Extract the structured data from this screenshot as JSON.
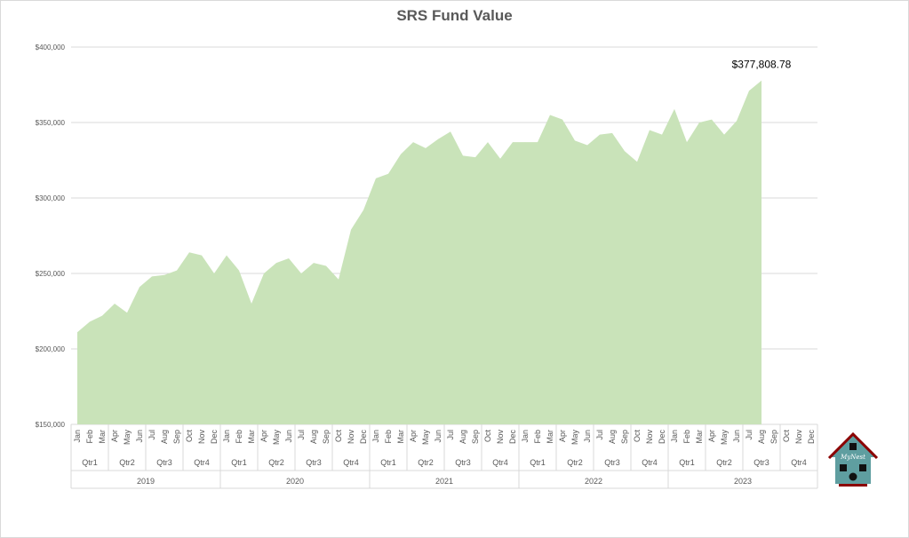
{
  "chart_data": {
    "type": "area",
    "title": "SRS Fund Value",
    "xlabel": "",
    "ylabel": "",
    "ylim": [
      150000,
      400000
    ],
    "yticks": [
      150000,
      200000,
      250000,
      300000,
      350000,
      400000
    ],
    "ytick_labels": [
      "$150,000",
      "$200,000",
      "$250,000",
      "$300,000",
      "$350,000",
      "$400,000"
    ],
    "grid": true,
    "color": "#c9e3b9",
    "months": [
      "Jan",
      "Feb",
      "Mar",
      "Apr",
      "May",
      "Jun",
      "Jul",
      "Aug",
      "Sep",
      "Oct",
      "Nov",
      "Dec"
    ],
    "quarters": [
      "Qtr1",
      "Qtr2",
      "Qtr3",
      "Qtr4"
    ],
    "years": [
      "2019",
      "2020",
      "2021",
      "2022",
      "2023"
    ],
    "series": [
      {
        "name": "SRS Fund Value",
        "values": [
          211000,
          218000,
          222000,
          230000,
          224000,
          241000,
          248000,
          249000,
          252000,
          264000,
          262000,
          250000,
          262000,
          252000,
          230000,
          250000,
          257000,
          260000,
          250000,
          257000,
          255000,
          246000,
          279000,
          292000,
          313000,
          316000,
          329000,
          337000,
          333000,
          339000,
          344000,
          328000,
          327000,
          337000,
          326000,
          337000,
          337000,
          337000,
          355000,
          352000,
          338000,
          335000,
          342000,
          343000,
          331000,
          324000,
          345000,
          342000,
          359000,
          337000,
          350000,
          352000,
          342000,
          351000,
          371000,
          377808.78
        ]
      }
    ],
    "data_label": "$377,808.78"
  },
  "logo_text": "MyNest"
}
